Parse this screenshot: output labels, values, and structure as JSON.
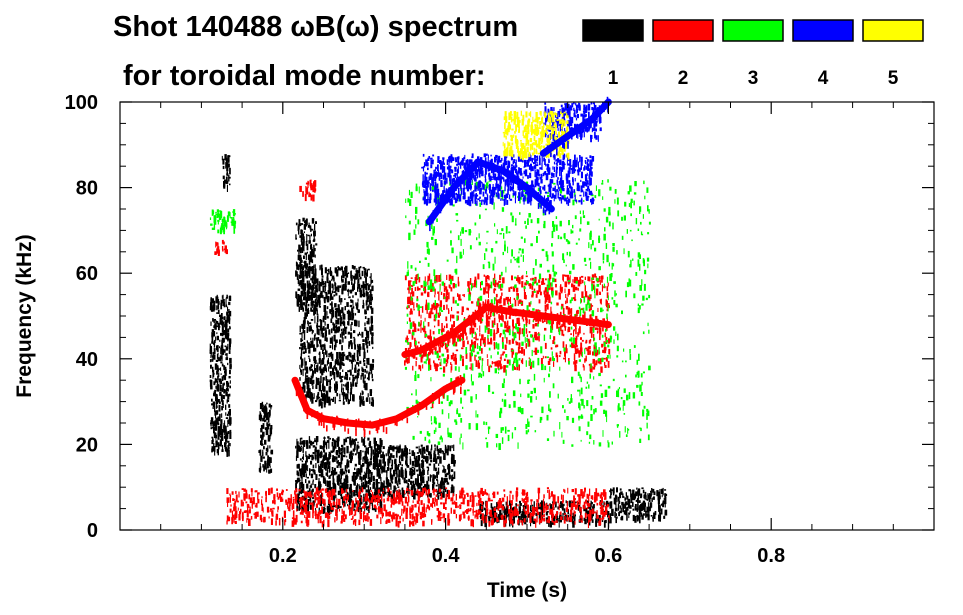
{
  "chart_data": {
    "type": "spectrogram",
    "title_line1": "Shot 140488 ωB(ω) spectrum",
    "title_line2": "for toroidal mode number:",
    "xlabel": "Time (s)",
    "ylabel": "Frequency (kHz)",
    "xlim": [
      0.0,
      1.0
    ],
    "ylim": [
      0,
      100
    ],
    "x_ticks": [
      0.2,
      0.4,
      0.6,
      0.8
    ],
    "x_tick_labels": [
      "0.2",
      "0.4",
      "0.6",
      "0.8"
    ],
    "y_ticks": [
      0,
      20,
      40,
      60,
      80,
      100
    ],
    "y_tick_labels": [
      "0",
      "20",
      "40",
      "60",
      "80",
      "100"
    ],
    "legend": [
      {
        "label": "1",
        "color": "#000000"
      },
      {
        "label": "2",
        "color": "#ff0000"
      },
      {
        "label": "3",
        "color": "#00ff00"
      },
      {
        "label": "4",
        "color": "#0000ff"
      },
      {
        "label": "5",
        "color": "#ffff00"
      }
    ],
    "regions": [
      {
        "mode": 1,
        "t": [
          0.11,
          0.135
        ],
        "f": [
          18,
          55
        ]
      },
      {
        "mode": 1,
        "t": [
          0.125,
          0.135
        ],
        "f": [
          80,
          88
        ]
      },
      {
        "mode": 1,
        "t": [
          0.17,
          0.185
        ],
        "f": [
          14,
          30
        ]
      },
      {
        "mode": 1,
        "t": [
          0.215,
          0.32
        ],
        "f": [
          5,
          22
        ]
      },
      {
        "mode": 1,
        "t": [
          0.215,
          0.24
        ],
        "f": [
          52,
          73
        ]
      },
      {
        "mode": 1,
        "t": [
          0.22,
          0.31
        ],
        "f": [
          30,
          62
        ]
      },
      {
        "mode": 1,
        "t": [
          0.31,
          0.41
        ],
        "f": [
          8,
          20
        ]
      },
      {
        "mode": 1,
        "t": [
          0.44,
          0.6
        ],
        "f": [
          2,
          7
        ]
      },
      {
        "mode": 1,
        "t": [
          0.6,
          0.67
        ],
        "f": [
          3,
          10
        ]
      },
      {
        "mode": 2,
        "t": [
          0.115,
          0.13
        ],
        "f": [
          65,
          68
        ]
      },
      {
        "mode": 2,
        "t": [
          0.22,
          0.24
        ],
        "f": [
          78,
          82
        ]
      },
      {
        "mode": 2,
        "t": [
          0.35,
          0.6
        ],
        "f": [
          38,
          60
        ]
      },
      {
        "mode": 2,
        "t": [
          0.13,
          0.6
        ],
        "f": [
          2,
          10
        ]
      },
      {
        "mode": 3,
        "t": [
          0.11,
          0.14
        ],
        "f": [
          70,
          75
        ]
      },
      {
        "mode": 3,
        "t": [
          0.35,
          0.65
        ],
        "f": [
          20,
          82
        ]
      },
      {
        "mode": 4,
        "t": [
          0.37,
          0.58
        ],
        "f": [
          77,
          88
        ]
      },
      {
        "mode": 4,
        "t": [
          0.52,
          0.59
        ],
        "f": [
          92,
          100
        ]
      },
      {
        "mode": 5,
        "t": [
          0.47,
          0.55
        ],
        "f": [
          88,
          98
        ]
      }
    ],
    "curves": [
      {
        "mode": 2,
        "label": "lower chirping branch",
        "t": [
          0.215,
          0.23,
          0.25,
          0.28,
          0.31,
          0.34,
          0.37,
          0.4,
          0.42
        ],
        "f": [
          35,
          28,
          26,
          25,
          24.5,
          26,
          29,
          33,
          35
        ]
      },
      {
        "mode": 2,
        "label": "upper rising branch",
        "t": [
          0.35,
          0.37,
          0.39,
          0.41,
          0.43,
          0.45,
          0.48,
          0.52,
          0.56,
          0.6
        ],
        "f": [
          41,
          42,
          44,
          46,
          49,
          52,
          51,
          50,
          49,
          48
        ]
      },
      {
        "mode": 4,
        "label": "n=4 sweep",
        "t": [
          0.38,
          0.41,
          0.44,
          0.47,
          0.5,
          0.53
        ],
        "f": [
          72,
          80,
          86,
          84,
          80,
          75
        ]
      },
      {
        "mode": 4,
        "label": "n=4 high branch",
        "t": [
          0.52,
          0.55,
          0.58,
          0.6
        ],
        "f": [
          88,
          92,
          96,
          100
        ]
      }
    ]
  }
}
